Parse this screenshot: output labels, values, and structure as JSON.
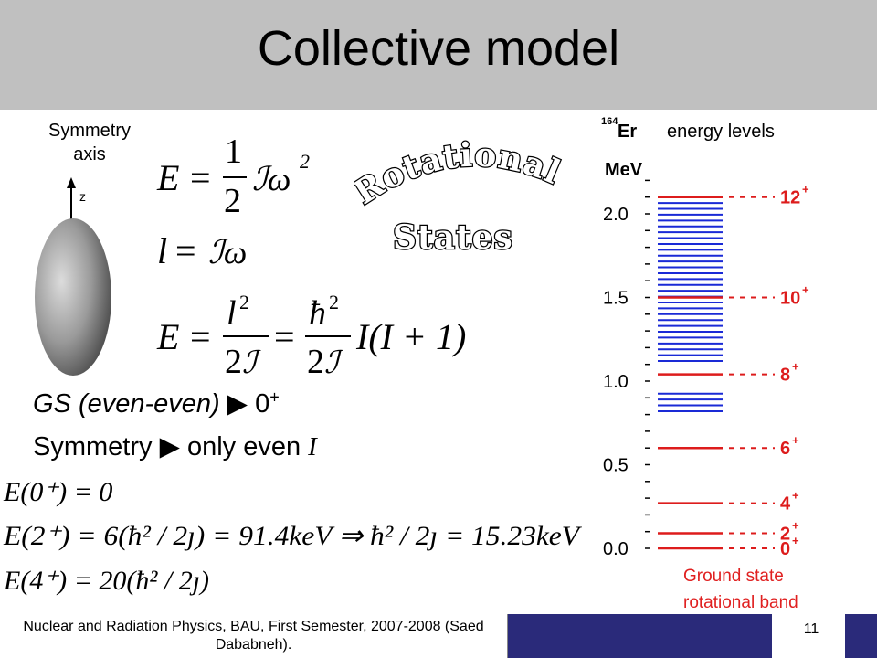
{
  "slide": {
    "title": "Collective model",
    "symmetry_label_line1": "Symmetry",
    "symmetry_label_line2": "axis",
    "axis_label": "z",
    "rotational_word1": "Rotational",
    "rotational_word2": "States",
    "gs_text": "GS (even-even)",
    "gs_value": "0",
    "gs_sup": "+",
    "symmetry_text": "Symmetry",
    "symmetry_value": "only even",
    "symmetry_var": "I",
    "eq_E0": "E(0⁺) = 0",
    "eq_E2": "E(2⁺) = 6(ħ² / 2ȷ) = 91.4keV ⇒ ħ² / 2ȷ = 15.23keV",
    "eq_E4": "E(4⁺) = 20(ħ² / 2ȷ)",
    "footer": "Nuclear and Radiation Physics, BAU, First Semester, 2007-2008 (Saed Dababneh).",
    "page_number": "11"
  },
  "chart": {
    "nucleus_mass": "164",
    "nucleus": "Er",
    "title_rest": "energy levels",
    "unit": "MeV",
    "ticks": [
      "2.0",
      "1.5",
      "1.0",
      "0.5",
      "0.0"
    ],
    "levels": [
      {
        "label": "12",
        "sup": "+",
        "energy": 2.1
      },
      {
        "label": "10",
        "sup": "+",
        "energy": 1.5
      },
      {
        "label": "8",
        "sup": "+",
        "energy": 1.04
      },
      {
        "label": "6",
        "sup": "+",
        "energy": 0.6
      },
      {
        "label": "4",
        "sup": "+",
        "energy": 0.27
      },
      {
        "label": "2",
        "sup": "+",
        "energy": 0.09
      },
      {
        "label": "0",
        "sup": "+",
        "energy": 0.0
      }
    ],
    "caption_line1": "Ground state",
    "caption_line2": "rotational band",
    "colors": {
      "red": "#dd1c1c",
      "blue": "#1a2ad6",
      "caption": "#e02020"
    }
  }
}
